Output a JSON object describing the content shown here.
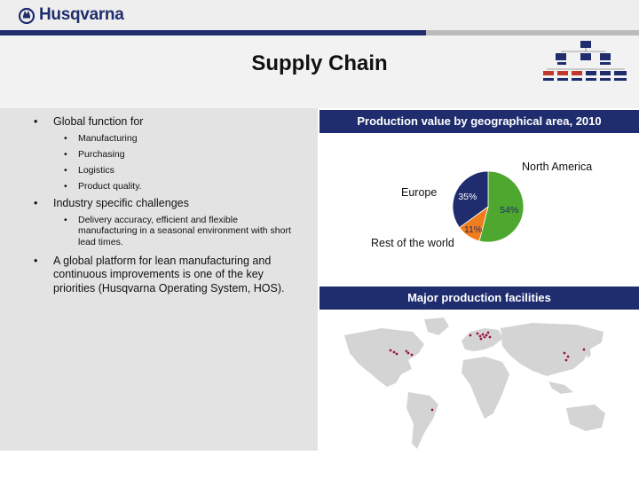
{
  "brand": {
    "name": "Husqvarna",
    "color_primary": "#1f2d6e"
  },
  "slide": {
    "title": "Supply Chain"
  },
  "bullets": [
    {
      "level": 1,
      "text": "Global function for"
    },
    {
      "level": 2,
      "text": "Manufacturing"
    },
    {
      "level": 2,
      "text": "Purchasing"
    },
    {
      "level": 2,
      "text": "Logistics"
    },
    {
      "level": 2,
      "text": "Product quality."
    },
    {
      "level": 1,
      "text": "Industry specific challenges"
    },
    {
      "level": 2,
      "text": "Delivery accuracy, efficient and flexible manufacturing in a seasonal environment with short lead times."
    },
    {
      "level": 1,
      "text": "A global platform for lean manufacturing and continuous improvements is one of the key priorities (Husqvarna Operating System, HOS)."
    }
  ],
  "chart_section": {
    "header": "Production value by geographical area, 2010"
  },
  "map_section": {
    "header": "Major production facilities"
  },
  "chart_data": {
    "type": "pie",
    "title": "Production value by geographical area, 2010",
    "slices": [
      {
        "label": "North America",
        "value": 54,
        "value_label": "54%",
        "color": "#4ea72e"
      },
      {
        "label": "Rest of the world",
        "value": 11,
        "value_label": "11%",
        "color": "#f07d1d"
      },
      {
        "label": "Europe",
        "value": 35,
        "value_label": "35%",
        "color": "#1f2d6e"
      }
    ]
  },
  "map_data": {
    "facility_marker_color": "#8b1a3a",
    "land_color": "#d4d4d4"
  }
}
